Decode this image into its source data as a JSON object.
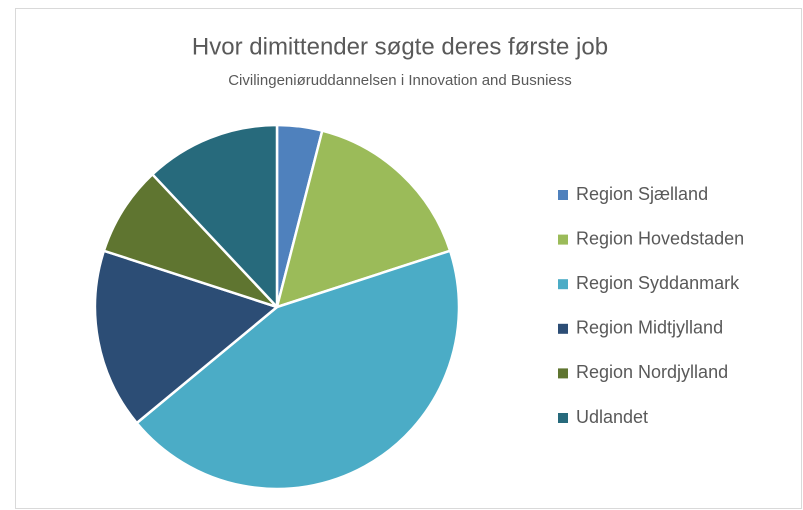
{
  "chart_data": {
    "type": "pie",
    "title": "Hvor dimittender søgte deres første job",
    "subtitle": "Civilingeniøruddannelsen i Innovation and Busniess",
    "categories": [
      "Region Sjælland",
      "Region Hovedstaden",
      "Region Syddanmark",
      "Region Midtjylland",
      "Region Nordjylland",
      "Udlandet"
    ],
    "values": [
      4,
      16,
      44,
      16,
      8,
      12
    ],
    "colors": [
      "#4f81bd",
      "#9bbb59",
      "#4bacc6",
      "#2c4d75",
      "#5f7530",
      "#276a7c"
    ],
    "legend": "right"
  }
}
